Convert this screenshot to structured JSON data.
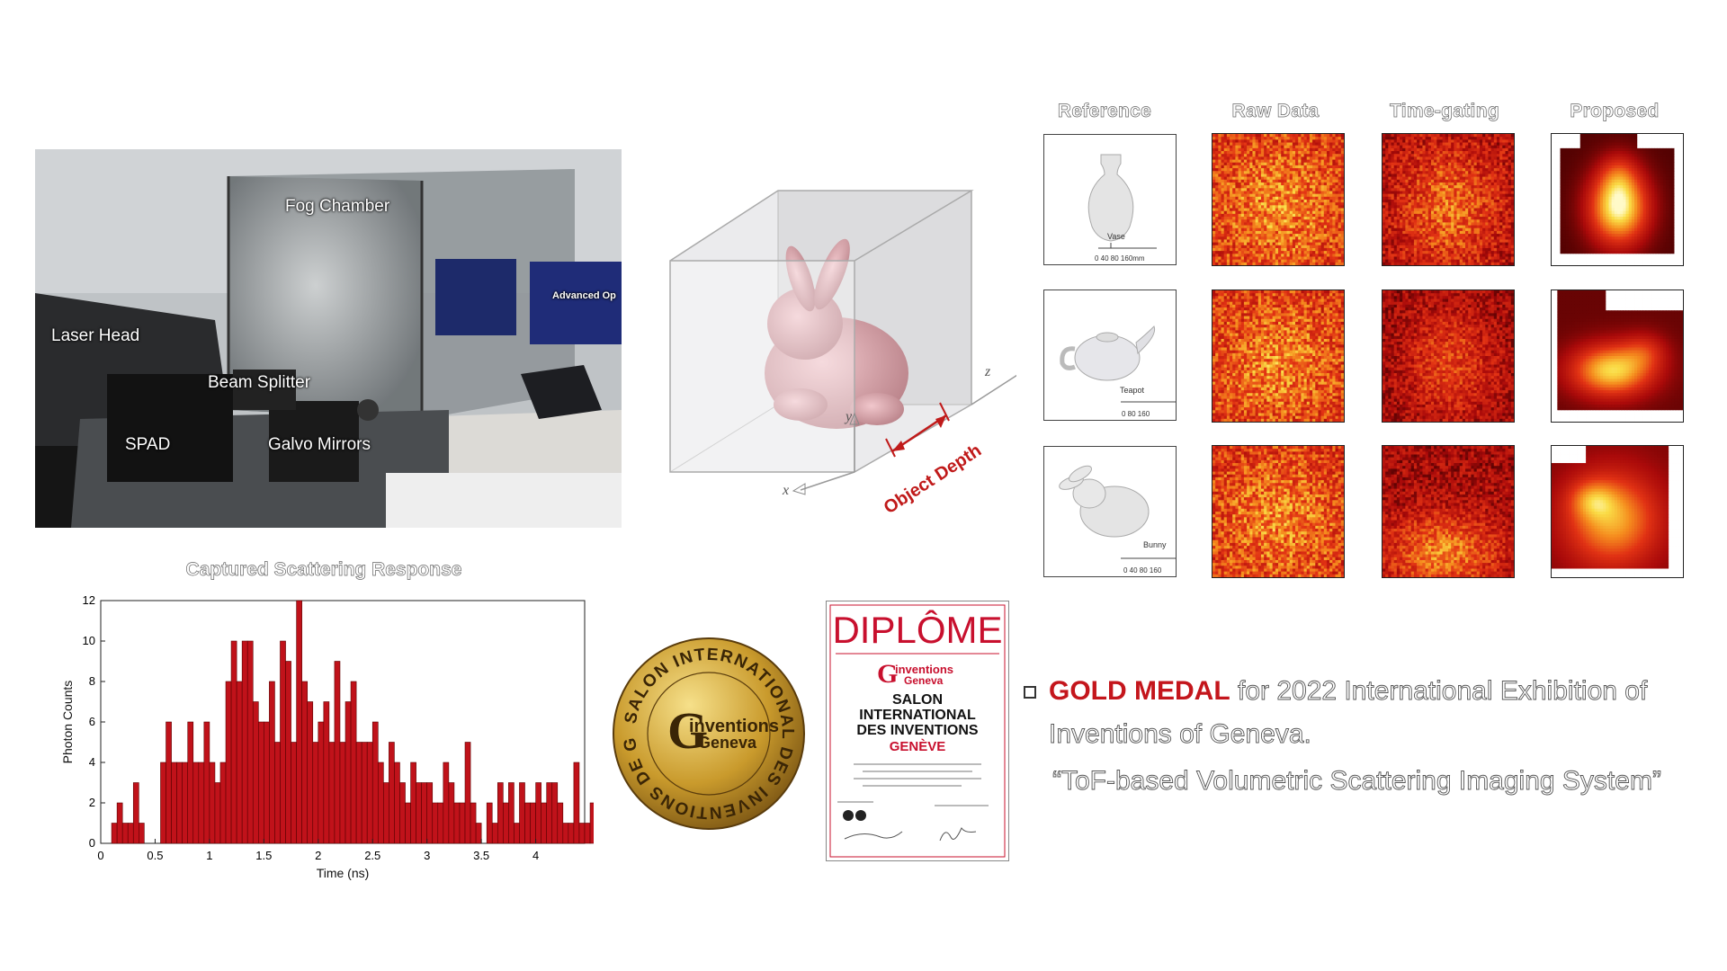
{
  "photo": {
    "labels": {
      "fog_chamber": "Fog Chamber",
      "laser_head": "Laser Head",
      "beam_splitter": "Beam Splitter",
      "spad": "SPAD",
      "galvo": "Galvo Mirrors",
      "brand": "Advanced Op"
    }
  },
  "cube": {
    "axis_x": "x",
    "axis_y": "y",
    "axis_z": "z",
    "depth_label": "Object Depth"
  },
  "grid": {
    "headers": [
      "Reference",
      "Raw Data",
      "Time-gating",
      "Proposed"
    ],
    "objects": [
      {
        "name": "Vase",
        "scale": "0  40  80   160mm"
      },
      {
        "name": "Teapot",
        "scale": "0  80 160"
      },
      {
        "name": "Bunny",
        "scale": "0  40  80  160"
      }
    ]
  },
  "chart_data": {
    "type": "bar",
    "title": "Captured Scattering Response",
    "xlabel": "Time (ns)",
    "ylabel": "Photon Counts",
    "xlim": [
      0,
      4.45
    ],
    "ylim": [
      0,
      12
    ],
    "xticks": [
      0,
      0.5,
      1,
      1.5,
      2,
      2.5,
      3,
      3.5,
      4
    ],
    "yticks": [
      0,
      2,
      4,
      6,
      8,
      10,
      12
    ],
    "bin_width": 0.05,
    "x_start": 0.1,
    "values": [
      1,
      2,
      1,
      1,
      3,
      1,
      0,
      0,
      0,
      4,
      6,
      4,
      4,
      4,
      6,
      4,
      4,
      6,
      4,
      3,
      4,
      8,
      10,
      8,
      10,
      10,
      7,
      6,
      6,
      8,
      5,
      10,
      9,
      5,
      12,
      8,
      7,
      5,
      6,
      7,
      5,
      9,
      5,
      7,
      8,
      5,
      5,
      5,
      6,
      4,
      3,
      5,
      4,
      3,
      2,
      4,
      3,
      3,
      3,
      2,
      2,
      4,
      3,
      2,
      2,
      5,
      2,
      1,
      0,
      2,
      1,
      3,
      2,
      3,
      1,
      3,
      2,
      2,
      3,
      2,
      3,
      3,
      2,
      1,
      1,
      4,
      1,
      1,
      2,
      3,
      2,
      1,
      5,
      1,
      1,
      1,
      0,
      2,
      3,
      2,
      2,
      3,
      4,
      2,
      2,
      4,
      3,
      2,
      1,
      2,
      1,
      1
    ]
  },
  "medal": {
    "ring_text": "SALON INTERNATIONAL DES INVENTIONS DE GENÈVE",
    "logo_line1": "inventions",
    "logo_line2": "Geneva"
  },
  "diploma": {
    "title": "DIPLÔME",
    "logo_line1": "inventions",
    "logo_line2": "Geneva",
    "salon_line1": "SALON",
    "salon_line2": "INTERNATIONAL",
    "salon_line3": "DES INVENTIONS",
    "city": "GENÈVE"
  },
  "award": {
    "highlight": "GOLD MEDAL",
    "line1_rest": " for 2022 International Exhibition of",
    "line2": "Inventions of Geneva.",
    "line3": "“ToF-based Volumetric Scattering Imaging System”",
    "colors": {
      "highlight": "#c4161c"
    }
  }
}
